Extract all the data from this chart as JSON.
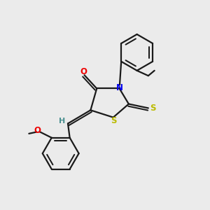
{
  "background_color": "#ebebeb",
  "atom_colors": {
    "C": "#1a1a1a",
    "N": "#0000ee",
    "O": "#ee0000",
    "S": "#bbbb00",
    "H": "#4a9090"
  },
  "bond_lw": 1.6,
  "font_size_atom": 8.5
}
